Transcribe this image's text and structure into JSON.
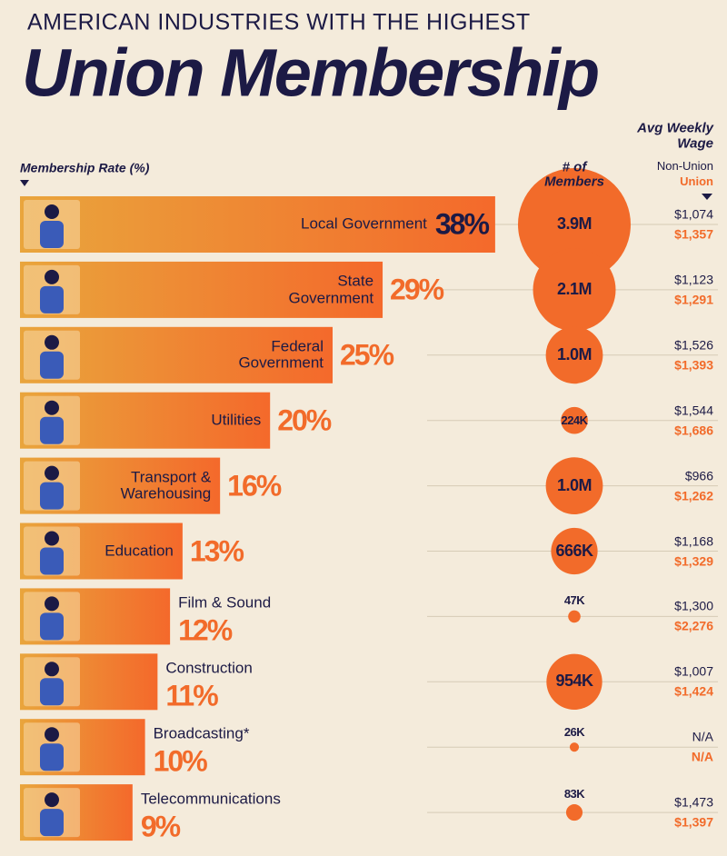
{
  "chart_data": {
    "type": "bar",
    "supertitle": "AMERICAN INDUSTRIES WITH THE HIGHEST",
    "title": "Union Membership",
    "x_label": "Membership Rate (%)",
    "color_start": "#e9a53c",
    "color_end": "#f4692b",
    "categories": [
      "Local Government",
      "State Government",
      "Federal Government",
      "Utilities",
      "Transport & Warehousing",
      "Education",
      "Film & Sound",
      "Construction",
      "Broadcasting*",
      "Telecommunications"
    ],
    "values": [
      38,
      29,
      25,
      20,
      16,
      13,
      12,
      11,
      10,
      9
    ],
    "value_labels": [
      "38%",
      "29%",
      "25%",
      "20%",
      "16%",
      "13%",
      "12%",
      "11%",
      "10%",
      "9%"
    ],
    "members": {
      "label": "# of Members",
      "color": "#f26b2a",
      "values": [
        3900000,
        2100000,
        1000000,
        224000,
        1000000,
        666000,
        47000,
        954000,
        26000,
        83000
      ],
      "value_labels": [
        "3.9M",
        "2.1M",
        "1.0M",
        "224K",
        "1.0M",
        "666K",
        "47K",
        "954K",
        "26K",
        "83K"
      ]
    },
    "wage": {
      "label": "Avg Weekly Wage",
      "non_union_label": "Non-Union",
      "union_label": "Union",
      "non_union": [
        1074,
        1123,
        1526,
        1544,
        966,
        1168,
        1300,
        1007,
        null,
        1473
      ],
      "non_union_labels": [
        "$1,074",
        "$1,123",
        "$1,526",
        "$1,544",
        "$966",
        "$1,168",
        "$1,300",
        "$1,007",
        "N/A",
        "$1,473"
      ],
      "union": [
        1357,
        1291,
        1393,
        1686,
        1262,
        1329,
        2276,
        1424,
        null,
        1397
      ],
      "union_labels": [
        "$1,357",
        "$1,291",
        "$1,393",
        "$1,686",
        "$1,262",
        "$1,329",
        "$2,276",
        "$1,424",
        "N/A",
        "$1,397"
      ]
    }
  }
}
